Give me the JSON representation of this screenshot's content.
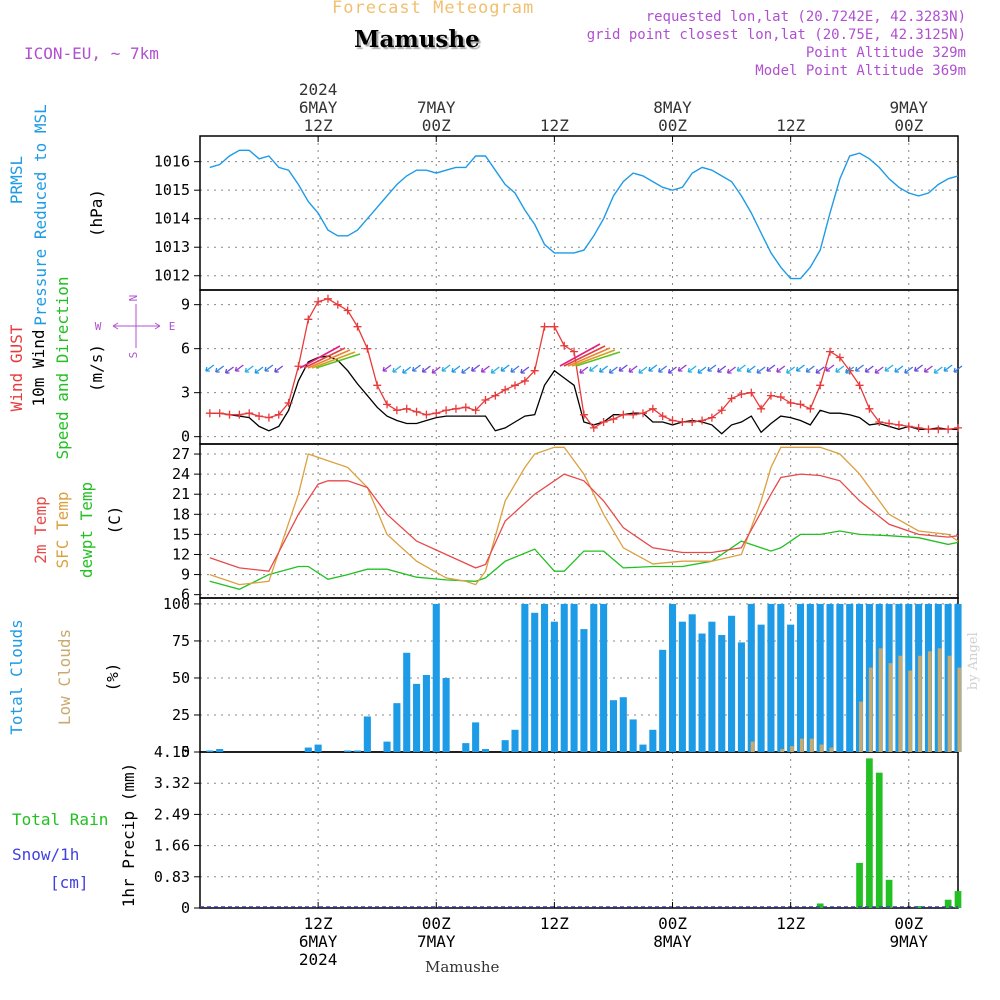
{
  "header": {
    "product": "Forecast Meteogram",
    "location": "Mamushe",
    "model": "ICON-EU, ~ 7km",
    "requested": "requested lon,lat (20.7242E, 42.3283N)",
    "grid": "grid point closest lon,lat (20.75E, 42.3125N)",
    "point_alt": "Point Altitude 329m",
    "model_alt": "Model Point Altitude 369m",
    "footer_location": "Mamushe",
    "watermark": "by Angel"
  },
  "colors": {
    "pressure": "#1e9be6",
    "gust": "#e83a3a",
    "wind": "#000000",
    "t2m": "#e84a4a",
    "sfc": "#dca040",
    "dewpt": "#22c022",
    "total_cloud": "#1e9be6",
    "low_cloud": "#c8aa6e",
    "precip": "#22c022",
    "snow": "#4040e0",
    "purple": "#b050d0",
    "orange": "#f0c070"
  },
  "chart_data": [
    {
      "type": "line",
      "panel": "pressure",
      "ylabel_lines": [
        "PRMSL",
        "Pressure Reduced to MSL"
      ],
      "unit": "(hPa)",
      "ylim": [
        1011.5,
        1016.9
      ],
      "yticks": [
        1012,
        1013,
        1014,
        1015,
        1016
      ],
      "grid": true,
      "series": [
        {
          "x": [
            0,
            1,
            2,
            3,
            4,
            5,
            6,
            7,
            8,
            9,
            10,
            11,
            12,
            13,
            14,
            15,
            16,
            17,
            18,
            19,
            20,
            21,
            22,
            23,
            24,
            25,
            26,
            27,
            28,
            29,
            30,
            31,
            32,
            33,
            34,
            35,
            36,
            37,
            38,
            39,
            40,
            41,
            42,
            43,
            44,
            45,
            46,
            47,
            48,
            49,
            50,
            51,
            52,
            53,
            54,
            55,
            56,
            57,
            58,
            59,
            60,
            61,
            62,
            63,
            64,
            65,
            66,
            67,
            68,
            69,
            70,
            71,
            72,
            73,
            74,
            75,
            76
          ],
          "values": [
            1015.8,
            1015.9,
            1016.2,
            1016.4,
            1016.4,
            1016.1,
            1016.2,
            1015.8,
            1015.7,
            1015.2,
            1014.6,
            1014.2,
            1013.6,
            1013.4,
            1013.4,
            1013.6,
            1014.0,
            1014.4,
            1014.8,
            1015.2,
            1015.5,
            1015.7,
            1015.7,
            1015.6,
            1015.7,
            1015.8,
            1015.8,
            1016.2,
            1016.2,
            1015.7,
            1015.2,
            1014.9,
            1014.3,
            1013.8,
            1013.1,
            1012.8,
            1012.8,
            1012.8,
            1012.9,
            1013.4,
            1014.0,
            1014.8,
            1015.3,
            1015.6,
            1015.5,
            1015.3,
            1015.1,
            1015.0,
            1015.1,
            1015.6,
            1015.8,
            1015.7,
            1015.5,
            1015.3,
            1014.8,
            1014.2,
            1013.5,
            1012.8,
            1012.3,
            1011.9,
            1011.9,
            1012.3,
            1012.9,
            1014.2,
            1015.4,
            1016.2,
            1016.3,
            1016.1,
            1015.8,
            1015.4,
            1015.1,
            1014.9,
            1014.8,
            1014.9,
            1015.2,
            1015.4,
            1015.5
          ]
        }
      ]
    },
    {
      "type": "line",
      "panel": "wind",
      "ylabel_lines": [
        "Wind GUST",
        "10m Wind",
        "Speed and Direction"
      ],
      "unit": "(m/s)",
      "compass": [
        "N",
        "S",
        "W",
        "E"
      ],
      "ylim": [
        -0.5,
        10
      ],
      "yticks": [
        0,
        3,
        6,
        9
      ],
      "grid": true,
      "series": [
        {
          "name": "gust",
          "x": [
            0,
            1,
            2,
            3,
            4,
            5,
            6,
            7,
            8,
            9,
            10,
            11,
            12,
            13,
            14,
            15,
            16,
            17,
            18,
            19,
            20,
            21,
            22,
            23,
            24,
            25,
            26,
            27,
            28,
            29,
            30,
            31,
            32,
            33,
            34,
            35,
            36,
            37,
            38,
            39,
            40,
            41,
            42,
            43,
            44,
            45,
            46,
            47,
            48,
            49,
            50,
            51,
            52,
            53,
            54,
            55,
            56,
            57,
            58,
            59,
            60,
            61,
            62,
            63,
            64,
            65,
            66,
            67,
            68,
            69,
            70,
            71,
            72,
            73,
            74,
            75,
            76
          ],
          "values": [
            1.6,
            1.6,
            1.5,
            1.5,
            1.6,
            1.4,
            1.3,
            1.5,
            2.3,
            4.8,
            8.0,
            9.2,
            9.4,
            9.0,
            8.6,
            7.5,
            6.0,
            3.5,
            2.2,
            1.8,
            1.9,
            1.7,
            1.5,
            1.6,
            1.8,
            1.9,
            2.0,
            1.8,
            2.5,
            2.8,
            3.2,
            3.5,
            3.8,
            4.5,
            7.5,
            7.5,
            6.2,
            5.8,
            1.5,
            0.6,
            1.0,
            1.2,
            1.5,
            1.5,
            1.6,
            1.9,
            1.4,
            1.1,
            1.0,
            1.0,
            1.1,
            1.3,
            1.8,
            2.6,
            2.9,
            3.0,
            1.9,
            2.8,
            2.7,
            2.3,
            2.2,
            1.9,
            3.5,
            5.8,
            5.4,
            4.5,
            3.5,
            1.9,
            1.0,
            0.9,
            0.8,
            0.7,
            0.6,
            0.5,
            0.5,
            0.5,
            0.6
          ]
        },
        {
          "name": "wind",
          "x": [
            0,
            1,
            2,
            3,
            4,
            5,
            6,
            7,
            8,
            9,
            10,
            11,
            12,
            13,
            14,
            15,
            16,
            17,
            18,
            19,
            20,
            21,
            22,
            23,
            24,
            25,
            26,
            27,
            28,
            29,
            30,
            31,
            32,
            33,
            34,
            35,
            36,
            37,
            38,
            39,
            40,
            41,
            42,
            43,
            44,
            45,
            46,
            47,
            48,
            49,
            50,
            51,
            52,
            53,
            54,
            55,
            56,
            57,
            58,
            59,
            60,
            61,
            62,
            63,
            64,
            65,
            66,
            67,
            68,
            69,
            70,
            71,
            72,
            73,
            74,
            75,
            76
          ],
          "values": [
            1.6,
            1.6,
            1.5,
            1.4,
            1.3,
            0.7,
            0.4,
            0.7,
            1.8,
            3.8,
            5.1,
            5.4,
            5.5,
            5.2,
            4.5,
            3.6,
            2.8,
            2.0,
            1.4,
            1.1,
            0.9,
            0.9,
            1.1,
            1.3,
            1.4,
            1.4,
            1.4,
            1.4,
            1.4,
            0.4,
            0.6,
            1.0,
            1.4,
            1.5,
            3.5,
            4.5,
            4.0,
            3.5,
            1.0,
            0.8,
            1.0,
            1.5,
            1.5,
            1.6,
            1.6,
            1.0,
            1.0,
            0.8,
            1.0,
            1.1,
            1.0,
            0.8,
            0.2,
            0.8,
            1.0,
            1.4,
            0.3,
            0.9,
            1.4,
            1.3,
            1.1,
            0.8,
            1.8,
            1.6,
            1.6,
            1.5,
            1.3,
            0.8,
            0.9,
            0.7,
            0.5,
            0.7,
            0.5,
            0.5,
            0.6,
            0.5,
            0.5
          ]
        }
      ]
    },
    {
      "type": "line",
      "panel": "temperature",
      "ylabel_lines": [
        "2m Temp",
        "SFC Temp",
        "dewpt Temp"
      ],
      "unit": "(C)",
      "ylim": [
        5.5,
        28.5
      ],
      "yticks": [
        6,
        9,
        12,
        15,
        18,
        21,
        24,
        27
      ],
      "grid": true,
      "series": [
        {
          "name": "2m Temp",
          "x": [
            0,
            3,
            6,
            9,
            11,
            12,
            14,
            16,
            18,
            21,
            24,
            27,
            28,
            30,
            33,
            35,
            36,
            38,
            40,
            42,
            45,
            48,
            51,
            54,
            57,
            58,
            60,
            62,
            64,
            66,
            69,
            72,
            75,
            76
          ],
          "values": [
            11.5,
            10,
            9.5,
            18,
            22.5,
            23,
            23,
            22,
            18,
            14,
            12,
            10,
            10.5,
            17,
            21,
            23,
            24,
            23,
            20,
            16,
            13,
            12.3,
            12.3,
            13,
            21,
            23.5,
            24,
            23.8,
            23,
            20,
            16.5,
            15,
            14.6,
            14.8
          ]
        },
        {
          "name": "SFC Temp",
          "x": [
            0,
            3,
            6,
            9,
            10,
            12,
            14,
            16,
            18,
            21,
            24,
            26,
            27,
            28,
            30,
            32,
            33,
            35,
            36,
            38,
            40,
            42,
            45,
            48,
            51,
            54,
            56,
            57,
            58,
            60,
            62,
            64,
            66,
            69,
            72,
            75,
            76
          ],
          "values": [
            9,
            7.5,
            8,
            21,
            27,
            26,
            25,
            22,
            15,
            11,
            8.5,
            8,
            7.5,
            9.5,
            20,
            25,
            27,
            28,
            28,
            24,
            18,
            13,
            10.6,
            11,
            11,
            12,
            20,
            25,
            28,
            28,
            28,
            27,
            24,
            18,
            15.5,
            15,
            14
          ]
        },
        {
          "name": "dewpt Temp",
          "x": [
            0,
            3,
            6,
            9,
            10,
            12,
            14,
            16,
            18,
            21,
            24,
            27,
            28,
            30,
            33,
            35,
            36,
            38,
            40,
            42,
            45,
            48,
            51,
            54,
            57,
            58,
            60,
            62,
            64,
            66,
            69,
            72,
            75,
            76
          ],
          "values": [
            8,
            6.8,
            9,
            10.2,
            10.2,
            8.3,
            9,
            9.8,
            9.8,
            8.6,
            8.2,
            8,
            8.5,
            11,
            12.8,
            9.5,
            9.5,
            12.5,
            12.5,
            10,
            10.2,
            10.2,
            11,
            14,
            12.5,
            13,
            15,
            15,
            15.5,
            15,
            14.8,
            14.5,
            13.5,
            13.8
          ]
        }
      ]
    },
    {
      "type": "bar",
      "panel": "clouds",
      "ylabel_lines": [
        "Total Clouds",
        "Low Clouds"
      ],
      "unit": "(%)",
      "ylim": [
        0,
        104
      ],
      "yticks": [
        0,
        25,
        50,
        75,
        100
      ],
      "grid": true,
      "series": [
        {
          "name": "Total Clouds",
          "values": [
            1,
            2,
            0,
            0,
            0,
            0,
            0,
            0,
            0,
            0,
            3,
            5,
            0,
            0,
            1,
            1,
            24,
            0,
            7,
            33,
            67,
            46,
            52,
            100,
            50,
            0,
            6,
            20,
            2,
            0,
            8,
            15,
            100,
            94,
            100,
            88,
            100,
            100,
            83,
            100,
            100,
            35,
            37,
            22,
            5,
            15,
            69,
            100,
            88,
            93,
            80,
            88,
            79,
            92,
            74,
            100,
            86,
            100,
            100,
            86,
            100,
            100,
            100,
            100,
            100,
            100,
            100,
            100,
            100,
            100,
            100,
            100,
            100,
            100,
            100,
            100,
            100
          ]
        },
        {
          "name": "Low Clouds",
          "values": [
            0,
            0,
            0,
            0,
            0,
            0,
            0,
            0,
            0,
            0,
            0,
            0,
            0,
            0,
            0,
            0,
            0,
            0,
            0,
            0,
            0,
            0,
            0,
            0,
            0,
            0,
            0,
            0,
            0,
            0,
            0,
            0,
            0,
            0,
            0,
            0,
            0,
            0,
            0,
            0,
            0,
            0,
            0,
            0,
            0,
            0,
            0,
            0,
            0,
            0,
            0,
            0,
            0,
            0,
            0,
            7,
            0,
            0,
            2,
            4,
            9,
            9,
            5,
            3,
            0,
            0,
            34,
            57,
            70,
            60,
            65,
            55,
            65,
            68,
            70,
            65,
            57
          ]
        }
      ]
    },
    {
      "type": "bar",
      "panel": "precip",
      "ylabel_lines": [
        "Total Rain",
        "Snow/1h",
        "[cm]"
      ],
      "unit": "1hr Precip (mm)",
      "ylim": [
        0,
        4.15
      ],
      "yticks": [
        0,
        0.83,
        1.66,
        2.49,
        3.32,
        4.15
      ],
      "ytick_labels": [
        "0",
        "0.83",
        "1.66",
        "2.49",
        "3.32",
        "4.15"
      ],
      "grid": true,
      "series": [
        {
          "name": "Total Rain",
          "values": [
            0,
            0,
            0,
            0,
            0,
            0,
            0,
            0,
            0,
            0,
            0,
            0,
            0,
            0,
            0,
            0,
            0,
            0,
            0,
            0,
            0,
            0,
            0,
            0,
            0,
            0,
            0,
            0,
            0,
            0,
            0,
            0,
            0,
            0,
            0,
            0,
            0,
            0,
            0,
            0,
            0,
            0,
            0,
            0,
            0,
            0,
            0,
            0,
            0,
            0,
            0,
            0,
            0,
            0,
            0,
            0,
            0,
            0,
            0,
            0,
            0,
            0,
            0.12,
            0,
            0,
            0,
            1.2,
            3.98,
            3.6,
            0.75,
            0,
            0,
            0.05,
            0,
            0,
            0.22,
            0.45
          ]
        }
      ]
    }
  ],
  "time_axis": {
    "x_range": [
      -1,
      76
    ],
    "top_labels": [
      {
        "x": 11,
        "lines": [
          "2024",
          "6MAY",
          "12Z"
        ]
      },
      {
        "x": 23,
        "lines": [
          "7MAY",
          "00Z"
        ]
      },
      {
        "x": 35,
        "lines": [
          "12Z"
        ]
      },
      {
        "x": 47,
        "lines": [
          "8MAY",
          "00Z"
        ]
      },
      {
        "x": 59,
        "lines": [
          "12Z"
        ]
      },
      {
        "x": 71,
        "lines": [
          "9MAY",
          "00Z"
        ]
      }
    ],
    "bottom_labels": [
      {
        "x": 11,
        "lines": [
          "12Z",
          "6MAY",
          "2024"
        ]
      },
      {
        "x": 23,
        "lines": [
          "00Z",
          "7MAY"
        ]
      },
      {
        "x": 35,
        "lines": [
          "12Z"
        ]
      },
      {
        "x": 47,
        "lines": [
          "00Z",
          "8MAY"
        ]
      },
      {
        "x": 59,
        "lines": [
          "12Z"
        ]
      },
      {
        "x": 71,
        "lines": [
          "00Z",
          "9MAY"
        ]
      }
    ],
    "gridlines_x": [
      11,
      23,
      35,
      47,
      59,
      71
    ]
  }
}
